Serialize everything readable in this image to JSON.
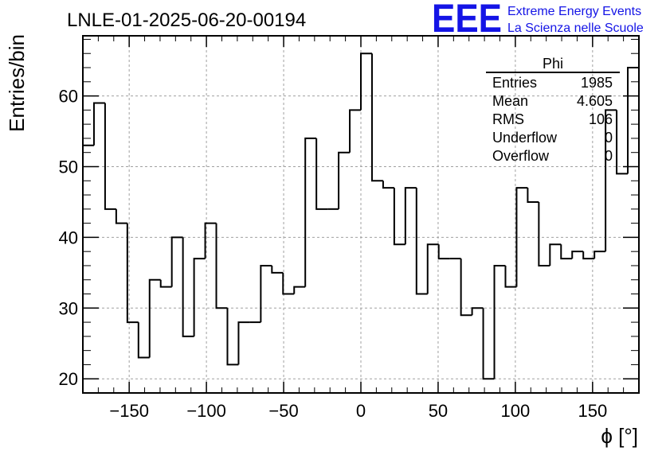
{
  "title": "LNLE-01-2025-06-20-00194",
  "logo": {
    "mark": "EEE",
    "line1": "Extreme Energy Events",
    "line2": "La Scienza nelle Scuole",
    "color": "#1414e6"
  },
  "stats_box": {
    "name": "Phi",
    "rows": [
      {
        "label": "Entries",
        "value": "1985"
      },
      {
        "label": "Mean",
        "value": "4.605"
      },
      {
        "label": "RMS",
        "value": "106"
      },
      {
        "label": "Underflow",
        "value": "0"
      },
      {
        "label": "Overflow",
        "value": "0"
      }
    ]
  },
  "chart_data": {
    "type": "bar",
    "style": "step-histogram",
    "xlabel": "ϕ [°]",
    "ylabel": "Entries/bin",
    "xlim": [
      -180,
      180
    ],
    "ylim": [
      18,
      68.5
    ],
    "grid": true,
    "bin_edges": [
      -180,
      -172.8,
      -165.6,
      -158.4,
      -151.2,
      -144,
      -136.8,
      -129.6,
      -122.4,
      -115.2,
      -108,
      -100.8,
      -93.6,
      -86.4,
      -79.2,
      -72,
      -64.8,
      -57.6,
      -50.4,
      -43.2,
      -36,
      -28.8,
      -21.6,
      -14.4,
      -7.2,
      0,
      7.2,
      14.4,
      21.6,
      28.8,
      36,
      43.2,
      50.4,
      57.6,
      64.8,
      72,
      79.2,
      86.4,
      93.6,
      100.8,
      108,
      115.2,
      122.4,
      129.6,
      136.8,
      144,
      151.2,
      158.4,
      165.6,
      172.8,
      180
    ],
    "values": [
      53,
      59,
      44,
      42,
      28,
      23,
      34,
      33,
      40,
      26,
      37,
      42,
      30,
      22,
      28,
      28,
      36,
      35,
      32,
      33,
      54,
      44,
      44,
      52,
      58,
      66,
      48,
      47,
      39,
      47,
      32,
      39,
      37,
      37,
      29,
      30,
      20,
      36,
      33,
      47,
      45,
      36,
      39,
      37,
      38,
      37,
      38,
      58,
      49,
      64
    ],
    "x_ticks": [
      -150,
      -100,
      -50,
      0,
      50,
      100,
      150
    ],
    "x_tick_labels": [
      "−150",
      "−100",
      "−50",
      "0",
      "50",
      "100",
      "150"
    ],
    "y_ticks": [
      20,
      30,
      40,
      50,
      60
    ],
    "y_tick_labels": [
      "20",
      "30",
      "40",
      "50",
      "60"
    ]
  }
}
